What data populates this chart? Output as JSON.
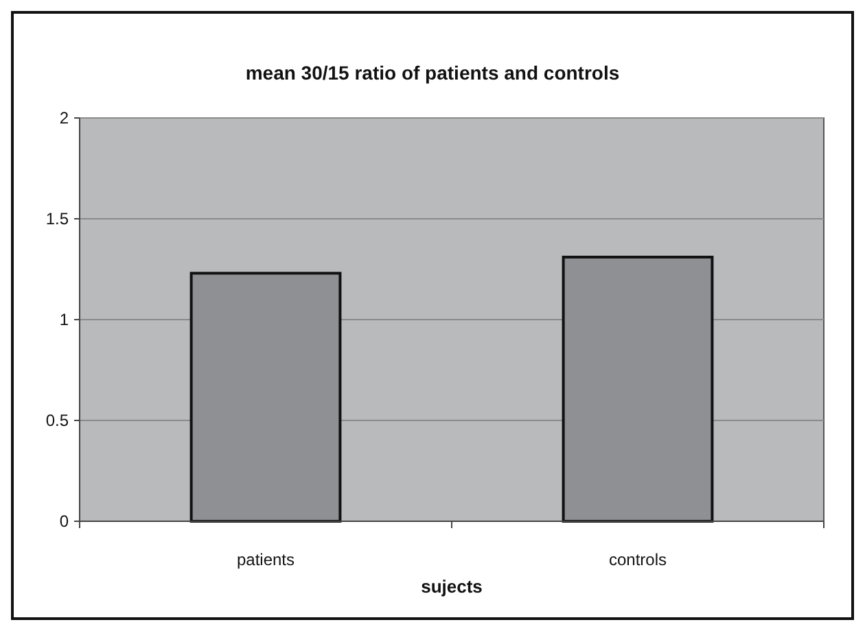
{
  "chart_data": {
    "type": "bar",
    "title": "mean 30/15 ratio of patients and controls",
    "xlabel": "sujects",
    "categories": [
      "patients",
      "controls"
    ],
    "series": [
      {
        "color": "#8f9094",
        "values": [
          1.23,
          1.31
        ]
      }
    ],
    "ylim": [
      0,
      2
    ],
    "yticks": [
      0,
      0.5,
      1,
      1.5,
      2
    ],
    "grid": "y"
  }
}
